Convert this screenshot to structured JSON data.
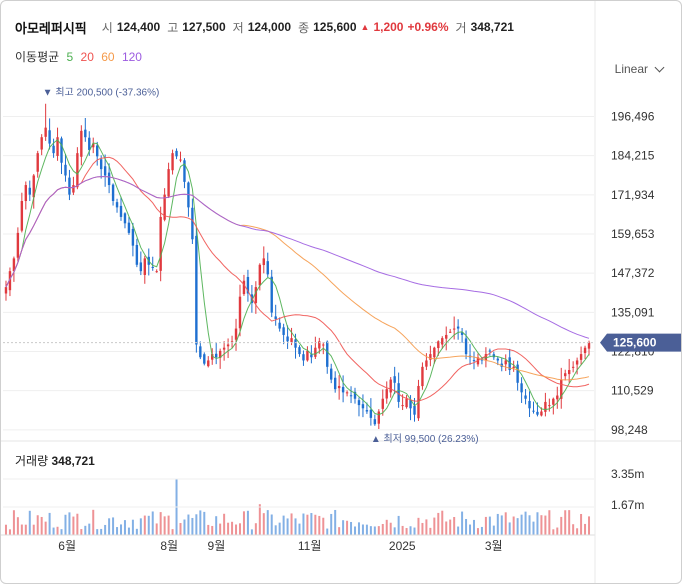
{
  "header": {
    "name": "아모레퍼시픽",
    "open_label": "시",
    "open": "124,400",
    "high_label": "고",
    "high": "127,500",
    "low_label": "저",
    "low": "124,000",
    "close_label": "종",
    "close": "125,600",
    "change_arrow": "▲",
    "change": "1,200",
    "change_pct": "+0.96%",
    "volume_label": "거",
    "volume": "348,721"
  },
  "ma_legend": {
    "label": "이동평균",
    "items": [
      {
        "period": "5",
        "color": "#4caf50"
      },
      {
        "period": "20",
        "color": "#ef5350"
      },
      {
        "period": "60",
        "color": "#f59a4a"
      },
      {
        "period": "120",
        "color": "#9c5ce0"
      }
    ]
  },
  "scale_mode": "Linear",
  "colors": {
    "up": "#e0393e",
    "down": "#1e6fd0",
    "badge": "#4b5f97",
    "grid": "#efefef"
  },
  "chart_data": {
    "type": "candlestick",
    "y_ticks": [
      "196,496",
      "184,215",
      "171,934",
      "159,653",
      "147,372",
      "135,091",
      "122,810",
      "110,529",
      "98,248"
    ],
    "y_tick_values": [
      196496,
      184215,
      171934,
      159653,
      147372,
      135091,
      122810,
      110529,
      98248
    ],
    "ylim": [
      96000,
      207000
    ],
    "x_ticks": [
      "6월",
      "8월",
      "9월",
      "11월",
      "2025",
      "3월"
    ],
    "current_price_label": "125,600",
    "current_price": 125600,
    "max_annotation": {
      "marker": "▼",
      "label": "최고",
      "value": "200,500",
      "pct": "(-37.36%)",
      "price": 200500
    },
    "min_annotation": {
      "marker": "▲",
      "label": "최저",
      "value": "99,500",
      "pct": "(26.23%)",
      "price": 99500
    },
    "close_series_approx": [
      143000,
      148000,
      152000,
      160000,
      170000,
      175000,
      172000,
      178000,
      185000,
      190000,
      193000,
      188000,
      185000,
      190000,
      182000,
      178000,
      172000,
      175000,
      185000,
      192000,
      190000,
      186000,
      188000,
      184000,
      180000,
      178000,
      175000,
      170000,
      168000,
      165000,
      163000,
      160000,
      156000,
      150000,
      148000,
      152000,
      150000,
      149000,
      148000,
      165000,
      172000,
      180000,
      185000,
      184000,
      183000,
      176000,
      168000,
      158000,
      125000,
      121000,
      119000,
      120000,
      122000,
      121000,
      123000,
      124000,
      125000,
      126000,
      130000,
      140000,
      145000,
      141000,
      138000,
      143000,
      150000,
      152000,
      147000,
      135000,
      133000,
      130000,
      128000,
      126000,
      127000,
      124000,
      122000,
      120000,
      123000,
      121000,
      124000,
      126000,
      125000,
      118000,
      114000,
      111000,
      112000,
      110000,
      110000,
      109000,
      108000,
      106000,
      105000,
      104000,
      102000,
      100000,
      104000,
      108000,
      111000,
      114000,
      113000,
      107000,
      106000,
      108000,
      105000,
      103000,
      112000,
      118000,
      120000,
      122000,
      124000,
      126000,
      127000,
      128000,
      129000,
      130000,
      130000,
      128000,
      122000,
      121000,
      120000,
      121000,
      120000,
      122000,
      123000,
      121000,
      120000,
      118000,
      120000,
      117000,
      118000,
      113000,
      110000,
      108000,
      105000,
      104000,
      103000,
      104000,
      107000,
      106000,
      108000,
      109000,
      114000,
      116000,
      117000,
      118000,
      120000,
      122000,
      124000,
      125600
    ],
    "volume_ticks": [
      "3.35m",
      "1.67m"
    ],
    "volume_peak_m": 3.35
  },
  "volume_panel": {
    "label": "거래량",
    "value": "348,721"
  }
}
